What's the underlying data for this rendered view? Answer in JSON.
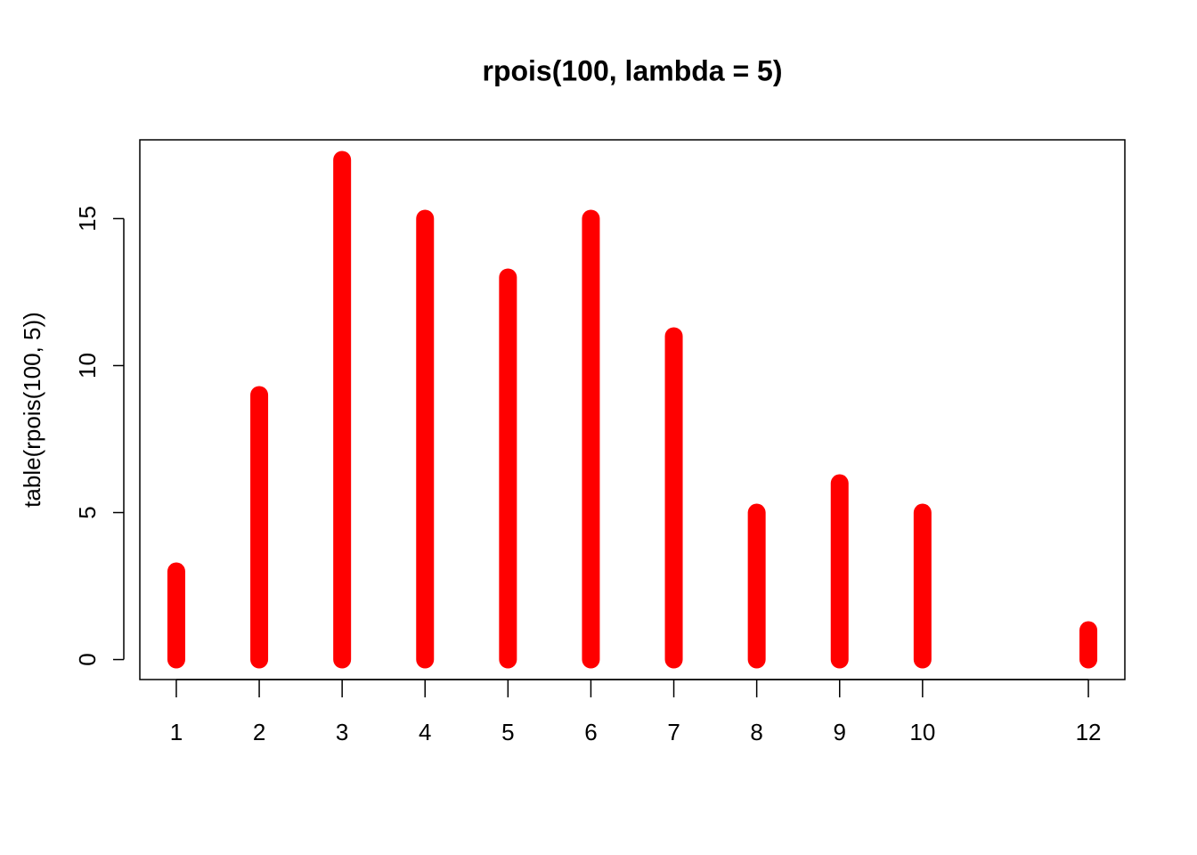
{
  "chart_data": {
    "type": "bar",
    "title": "rpois(100, lambda = 5)",
    "ylabel": "table(rpois(100, 5))",
    "x": [
      1,
      2,
      3,
      4,
      5,
      6,
      7,
      8,
      9,
      10,
      12
    ],
    "values": [
      3,
      9,
      17,
      15,
      13,
      15,
      11,
      5,
      6,
      5,
      1
    ],
    "color": "#ff0000",
    "xlim": [
      0.56,
      12.44
    ],
    "xticks": [
      1,
      2,
      3,
      4,
      5,
      6,
      7,
      8,
      9,
      10,
      12
    ],
    "ylim": [
      -0.68,
      17.68
    ],
    "yticks": [
      0,
      5,
      10,
      15
    ]
  }
}
